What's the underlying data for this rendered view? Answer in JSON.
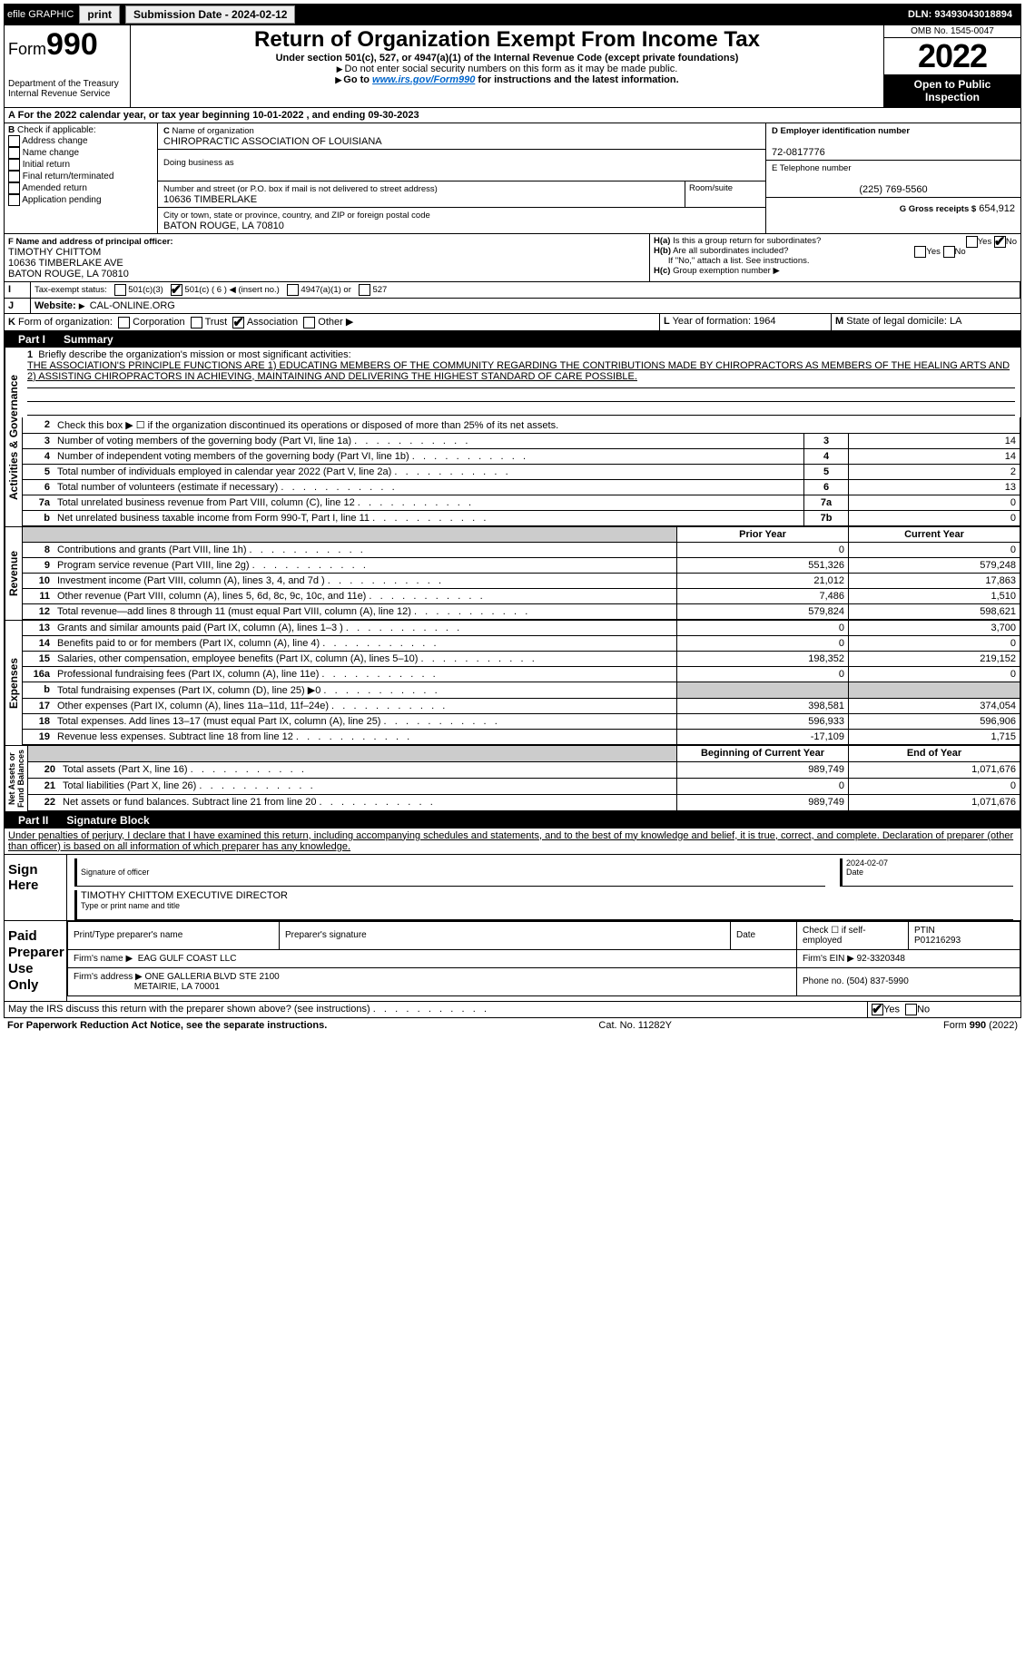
{
  "topbar": {
    "efile": "efile GRAPHIC",
    "print": "print",
    "submission_lbl": "Submission Date - 2024-02-12",
    "dln": "DLN: 93493043018894"
  },
  "header": {
    "form_word": "Form",
    "form_num": "990",
    "dept1": "Department of the Treasury",
    "dept2": "Internal Revenue Service",
    "title": "Return of Organization Exempt From Income Tax",
    "sub": "Under section 501(c), 527, or 4947(a)(1) of the Internal Revenue Code (except private foundations)",
    "sub2": "Do not enter social security numbers on this form as it may be made public.",
    "sub3_pre": "Go to ",
    "sub3_link": "www.irs.gov/Form990",
    "sub3_post": " for instructions and the latest information.",
    "omb": "OMB No. 1545-0047",
    "year": "2022",
    "open": "Open to Public Inspection"
  },
  "period": {
    "text": "For the 2022 calendar year, or tax year beginning 10-01-2022     , and ending 09-30-2023"
  },
  "boxB": {
    "hdr": "Check if applicable:",
    "items": [
      "Address change",
      "Name change",
      "Initial return",
      "Final return/terminated",
      "Amended return",
      "Application pending"
    ]
  },
  "boxC": {
    "name_lbl": "Name of organization",
    "name": "CHIROPRACTIC ASSOCIATION OF LOUISIANA",
    "dba_lbl": "Doing business as",
    "addr_lbl": "Number and street (or P.O. box if mail is not delivered to street address)",
    "room_lbl": "Room/suite",
    "addr": "10636 TIMBERLAKE",
    "city_lbl": "City or town, state or province, country, and ZIP or foreign postal code",
    "city": "BATON ROUGE, LA  70810"
  },
  "boxD": {
    "lbl": "D Employer identification number",
    "val": "72-0817776"
  },
  "boxE": {
    "lbl": "E Telephone number",
    "val": "(225) 769-5560"
  },
  "boxG": {
    "lbl": "G Gross receipts $",
    "val": "654,912"
  },
  "boxF": {
    "lbl": "F  Name and address of principal officer:",
    "l1": "TIMOTHY CHITTOM",
    "l2": "10636 TIMBERLAKE AVE",
    "l3": "BATON ROUGE, LA  70810"
  },
  "boxH": {
    "a": "Is this a group return for subordinates?",
    "b": "Are all subordinates included?",
    "note": "If \"No,\" attach a list. See instructions.",
    "c": "Group exemption number"
  },
  "boxI": {
    "lbl": "Tax-exempt status:",
    "opts": [
      "501(c)(3)",
      "501(c) ( 6 ) ◀ (insert no.)",
      "4947(a)(1) or",
      "527"
    ]
  },
  "boxJ": {
    "lbl": "Website:",
    "val": "CAL-ONLINE.ORG"
  },
  "boxK": {
    "lbl": "Form of organization:",
    "opts": [
      "Corporation",
      "Trust",
      "Association",
      "Other"
    ]
  },
  "boxL": {
    "lbl": "Year of formation: 1964"
  },
  "boxM": {
    "lbl": "State of legal domicile: LA"
  },
  "part1": {
    "lbl": "Part I",
    "title": "Summary"
  },
  "mission": {
    "lbl": "Briefly describe the organization's mission or most significant activities:",
    "text": "THE ASSOCIATION'S PRINCIPLE FUNCTIONS ARE 1) EDUCATING MEMBERS OF THE COMMUNITY REGARDING THE CONTRIBUTIONS MADE BY CHIROPRACTORS AS MEMBERS OF THE HEALING ARTS AND 2) ASSISTING CHIROPRACTORS IN ACHIEVING, MAINTAINING AND DELIVERING THE HIGHEST STANDARD OF CARE POSSIBLE."
  },
  "gov_lines": [
    {
      "n": "2",
      "t": "Check this box ▶ ☐  if the organization discontinued its operations or disposed of more than 25% of its net assets."
    },
    {
      "n": "3",
      "t": "Number of voting members of the governing body (Part VI, line 1a)",
      "box": "3",
      "v": "14"
    },
    {
      "n": "4",
      "t": "Number of independent voting members of the governing body (Part VI, line 1b)",
      "box": "4",
      "v": "14"
    },
    {
      "n": "5",
      "t": "Total number of individuals employed in calendar year 2022 (Part V, line 2a)",
      "box": "5",
      "v": "2"
    },
    {
      "n": "6",
      "t": "Total number of volunteers (estimate if necessary)",
      "box": "6",
      "v": "13"
    },
    {
      "n": "7a",
      "t": "Total unrelated business revenue from Part VIII, column (C), line 12",
      "box": "7a",
      "v": "0"
    },
    {
      "n": "b",
      "t": "Net unrelated business taxable income from Form 990-T, Part I, line 11",
      "box": "7b",
      "v": "0"
    }
  ],
  "col_hdr": {
    "prior": "Prior Year",
    "curr": "Current Year"
  },
  "rev_lines": [
    {
      "n": "8",
      "t": "Contributions and grants (Part VIII, line 1h)",
      "p": "0",
      "c": "0"
    },
    {
      "n": "9",
      "t": "Program service revenue (Part VIII, line 2g)",
      "p": "551,326",
      "c": "579,248"
    },
    {
      "n": "10",
      "t": "Investment income (Part VIII, column (A), lines 3, 4, and 7d )",
      "p": "21,012",
      "c": "17,863"
    },
    {
      "n": "11",
      "t": "Other revenue (Part VIII, column (A), lines 5, 6d, 8c, 9c, 10c, and 11e)",
      "p": "7,486",
      "c": "1,510"
    },
    {
      "n": "12",
      "t": "Total revenue—add lines 8 through 11 (must equal Part VIII, column (A), line 12)",
      "p": "579,824",
      "c": "598,621"
    }
  ],
  "exp_lines": [
    {
      "n": "13",
      "t": "Grants and similar amounts paid (Part IX, column (A), lines 1–3 )",
      "p": "0",
      "c": "3,700"
    },
    {
      "n": "14",
      "t": "Benefits paid to or for members (Part IX, column (A), line 4)",
      "p": "0",
      "c": "0"
    },
    {
      "n": "15",
      "t": "Salaries, other compensation, employee benefits (Part IX, column (A), lines 5–10)",
      "p": "198,352",
      "c": "219,152"
    },
    {
      "n": "16a",
      "t": "Professional fundraising fees (Part IX, column (A), line 11e)",
      "p": "0",
      "c": "0"
    },
    {
      "n": "b",
      "t": "Total fundraising expenses (Part IX, column (D), line 25) ▶0",
      "p": "",
      "c": "",
      "grey": true
    },
    {
      "n": "17",
      "t": "Other expenses (Part IX, column (A), lines 11a–11d, 11f–24e)",
      "p": "398,581",
      "c": "374,054"
    },
    {
      "n": "18",
      "t": "Total expenses. Add lines 13–17 (must equal Part IX, column (A), line 25)",
      "p": "596,933",
      "c": "596,906"
    },
    {
      "n": "19",
      "t": "Revenue less expenses. Subtract line 18 from line 12",
      "p": "-17,109",
      "c": "1,715"
    }
  ],
  "net_hdr": {
    "prior": "Beginning of Current Year",
    "curr": "End of Year"
  },
  "net_lines": [
    {
      "n": "20",
      "t": "Total assets (Part X, line 16)",
      "p": "989,749",
      "c": "1,071,676"
    },
    {
      "n": "21",
      "t": "Total liabilities (Part X, line 26)",
      "p": "0",
      "c": "0"
    },
    {
      "n": "22",
      "t": "Net assets or fund balances. Subtract line 21 from line 20",
      "p": "989,749",
      "c": "1,071,676"
    }
  ],
  "part2": {
    "lbl": "Part II",
    "title": "Signature Block"
  },
  "penalties": "Under penalties of perjury, I declare that I have examined this return, including accompanying schedules and statements, and to the best of my knowledge and belief, it is true, correct, and complete. Declaration of preparer (other than officer) is based on all information of which preparer has any knowledge.",
  "sign": {
    "lbl": "Sign Here",
    "sig_lbl": "Signature of officer",
    "date_lbl": "Date",
    "date": "2024-02-07",
    "name": "TIMOTHY CHITTOM  EXECUTIVE DIRECTOR",
    "name_lbl": "Type or print name and title"
  },
  "prep": {
    "lbl": "Paid Preparer Use Only",
    "h1": "Print/Type preparer's name",
    "h2": "Preparer's signature",
    "h3": "Date",
    "h4": "Check ☐ if self-employed",
    "h5": "PTIN",
    "ptin": "P01216293",
    "firm_lbl": "Firm's name   ▶",
    "firm": "EAG GULF COAST LLC",
    "ein_lbl": "Firm's EIN ▶",
    "ein": "92-3320348",
    "addr_lbl": "Firm's address ▶",
    "addr1": "ONE GALLERIA BLVD STE 2100",
    "addr2": "METAIRIE, LA  70001",
    "phone_lbl": "Phone no.",
    "phone": "(504) 837-5990"
  },
  "discuss": "May the IRS discuss this return with the preparer shown above? (see instructions)",
  "footer": {
    "l": "For Paperwork Reduction Act Notice, see the separate instructions.",
    "c": "Cat. No. 11282Y",
    "r": "Form 990 (2022)"
  }
}
